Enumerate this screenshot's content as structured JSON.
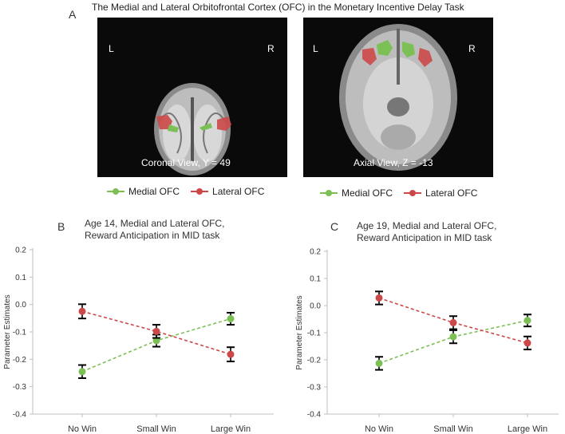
{
  "figure": {
    "title": "The Medial and Lateral Orbitofrontal Cortex (OFC) in the Monetary Incentive Delay Task",
    "panel_a": "A",
    "panel_b": "B",
    "panel_c": "C"
  },
  "brains": [
    {
      "left_label": "L",
      "right_label": "R",
      "caption": "Coronal View, Y = 49"
    },
    {
      "left_label": "L",
      "right_label": "R",
      "caption": "Axial View, Z = -13"
    }
  ],
  "legend": {
    "medial": "Medial OFC",
    "lateral": "Lateral OFC"
  },
  "colors": {
    "medial": "#7cc055",
    "lateral": "#cc4848",
    "error": "#000000"
  },
  "chart_data": [
    {
      "type": "line",
      "title_line1": "Age 14, Medial and Lateral OFC,",
      "title_line2": "Reward Anticipation in MID task",
      "ylabel": "Parameter Estimates",
      "categories": [
        "No Win",
        "Small Win",
        "Large Win"
      ],
      "ylim": [
        -0.4,
        0.2
      ],
      "yticks": [
        "0.2",
        "0.1",
        "0.0",
        "-0.1",
        "-0.2",
        "-0.3",
        "-0.4"
      ],
      "series": [
        {
          "name": "Medial OFC",
          "values": [
            -0.245,
            -0.132,
            -0.052
          ],
          "errors": [
            0.024,
            0.022,
            0.022
          ]
        },
        {
          "name": "Lateral OFC",
          "values": [
            -0.025,
            -0.098,
            -0.182
          ],
          "errors": [
            0.026,
            0.024,
            0.026
          ]
        }
      ]
    },
    {
      "type": "line",
      "title_line1": "Age 19, Medial and Lateral OFC,",
      "title_line2": "Reward Anticipation in MID task",
      "ylabel": "Parameter Estimates",
      "categories": [
        "No Win",
        "Small Win",
        "Large Win"
      ],
      "ylim": [
        -0.4,
        0.2
      ],
      "yticks": [
        "0.2",
        "0.1",
        "0.0",
        "-0.1",
        "-0.2",
        "-0.3",
        "-0.4"
      ],
      "series": [
        {
          "name": "Medial OFC",
          "values": [
            -0.213,
            -0.115,
            -0.055
          ],
          "errors": [
            0.024,
            0.024,
            0.022
          ]
        },
        {
          "name": "Lateral OFC",
          "values": [
            0.028,
            -0.063,
            -0.138
          ],
          "errors": [
            0.024,
            0.024,
            0.024
          ]
        }
      ]
    }
  ]
}
